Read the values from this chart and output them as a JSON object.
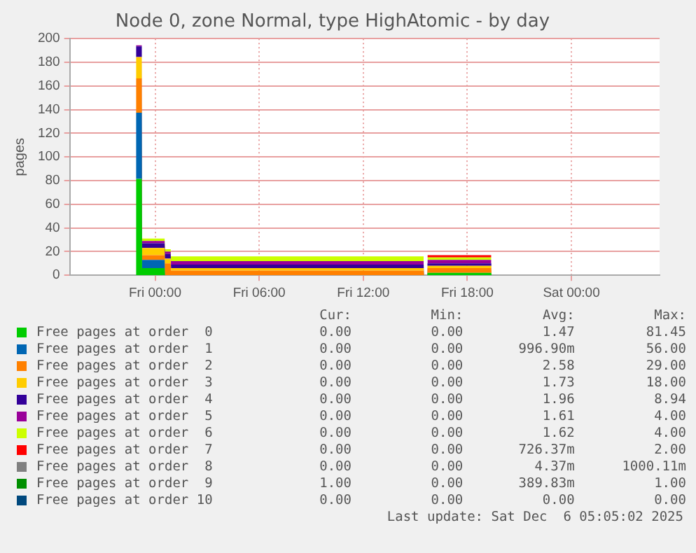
{
  "chart_data": {
    "type": "area",
    "title": "Node 0, zone Normal, type HighAtomic - by day",
    "ylabel": "pages",
    "stacked": true,
    "legend": "bottom",
    "grid": true,
    "x": [
      "2025-12-04T22:54",
      "2025-12-04T23:14",
      "2025-12-04T23:15",
      "2025-12-05T00:33",
      "2025-12-05T00:34",
      "2025-12-05T00:54",
      "2025-12-05T00:55",
      "2025-12-05T15:29",
      "2025-12-05T15:30",
      "2025-12-05T15:41",
      "2025-12-05T15:42",
      "2025-12-05T19:23",
      "2025-12-05T19:24"
    ],
    "xlim": [
      "2025-12-04T19:05",
      "2025-12-06T05:05"
    ],
    "xticks": [
      {
        "value": "2025-12-05T00:00",
        "label": "Fri 00:00"
      },
      {
        "value": "2025-12-05T06:00",
        "label": "Fri 06:00"
      },
      {
        "value": "2025-12-05T12:00",
        "label": "Fri 12:00"
      },
      {
        "value": "2025-12-05T18:00",
        "label": "Fri 18:00"
      },
      {
        "value": "2025-12-06T00:00",
        "label": "Sat 00:00"
      }
    ],
    "ylim": [
      0,
      200
    ],
    "yticks": [
      0,
      20,
      40,
      60,
      80,
      100,
      120,
      140,
      160,
      180,
      200
    ],
    "series": [
      {
        "name": "Free pages at order  0",
        "color": "#00cc00",
        "values": [
          81.45,
          81.45,
          6,
          6,
          0,
          0,
          0,
          0,
          0,
          0,
          2,
          2,
          0
        ]
      },
      {
        "name": "Free pages at order  1",
        "color": "#0066b3",
        "values": [
          56,
          56,
          7,
          7,
          0,
          0,
          0,
          0,
          0,
          0,
          0,
          0,
          0
        ]
      },
      {
        "name": "Free pages at order  2",
        "color": "#ff8000",
        "values": [
          29,
          29,
          4,
          4,
          10,
          10,
          4,
          4,
          0,
          0,
          4,
          4,
          0
        ]
      },
      {
        "name": "Free pages at order  3",
        "color": "#ffcc00",
        "values": [
          18,
          18,
          6,
          6,
          4,
          4,
          2,
          2,
          0,
          0,
          2,
          2,
          0
        ]
      },
      {
        "name": "Free pages at order  4",
        "color": "#330099",
        "values": [
          8.94,
          8.94,
          4,
          4,
          4,
          4,
          3,
          3,
          0,
          0,
          2,
          2,
          0
        ]
      },
      {
        "name": "Free pages at order  5",
        "color": "#990099",
        "values": [
          1,
          1,
          2,
          2,
          2,
          2,
          3,
          3,
          null,
          null,
          3,
          3,
          null
        ]
      },
      {
        "name": "Free pages at order  6",
        "color": "#ccff00",
        "values": [
          null,
          null,
          2,
          2,
          2,
          2,
          4,
          4,
          null,
          null,
          2,
          2,
          null
        ]
      },
      {
        "name": "Free pages at order  7",
        "color": "#ff0000",
        "values": [
          null,
          null,
          null,
          null,
          null,
          null,
          null,
          null,
          null,
          null,
          2,
          2,
          null
        ]
      },
      {
        "name": "Free pages at order  8",
        "color": "#808080",
        "values": [
          null,
          null,
          null,
          null,
          null,
          null,
          null,
          null,
          null,
          null,
          null,
          null,
          null
        ]
      },
      {
        "name": "Free pages at order  9",
        "color": "#008f00",
        "values": [
          null,
          null,
          null,
          null,
          null,
          null,
          null,
          null,
          null,
          null,
          null,
          null,
          null
        ]
      },
      {
        "name": "Free pages at order 10",
        "color": "#00487d",
        "values": [
          null,
          null,
          null,
          null,
          null,
          null,
          null,
          null,
          null,
          null,
          null,
          null,
          null
        ]
      }
    ],
    "annotations": [
      "Cur:",
      "Min:",
      "Avg:",
      "Max:",
      "0.00",
      "0.00",
      "1.47",
      "81.45",
      "0.00",
      "0.00",
      "996.90m",
      "56.00",
      "0.00",
      "0.00",
      "2.58",
      "29.00",
      "0.00",
      "0.00",
      "1.73",
      "18.00",
      "0.00",
      "0.00",
      "1.96",
      "8.94",
      "0.00",
      "0.00",
      "1.61",
      "4.00",
      "0.00",
      "0.00",
      "1.62",
      "4.00",
      "0.00",
      "0.00",
      "726.37m",
      "2.00",
      "0.00",
      "0.00",
      "4.37m",
      "1000.11m",
      "1.00",
      "0.00",
      "389.83m",
      "1.00",
      "0.00",
      "0.00",
      "0.00",
      "0.00",
      "Last update: Sat Dec  6 05:05:02 2025"
    ]
  }
}
